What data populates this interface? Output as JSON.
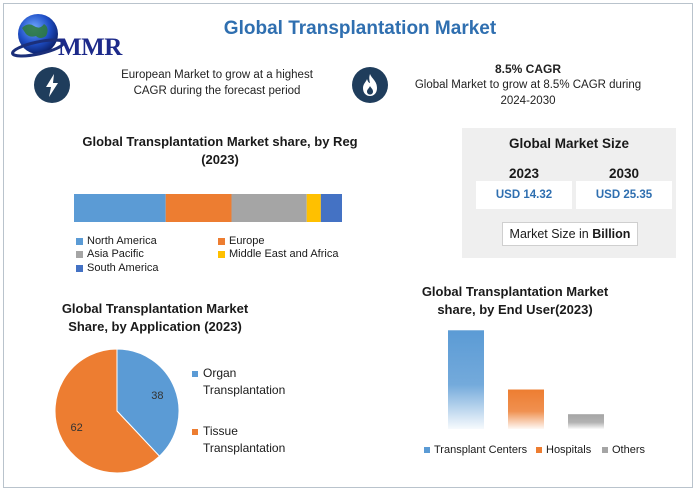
{
  "header": {
    "title": "Global Transplantation Market",
    "logo_text": "MMR"
  },
  "highlights": [
    {
      "icon": "lightning-icon",
      "headline": "",
      "text_line1": "European Market to grow at a highest",
      "text_line2": "CAGR during the forecast period"
    },
    {
      "icon": "flame-icon",
      "headline": "8.5% CAGR",
      "text_line1": "Global Market to grow at 8.5% CAGR during",
      "text_line2": "2024-2030"
    }
  ],
  "market_size": {
    "title": "Global Market Size",
    "year1": "2023",
    "year2": "2030",
    "value1": "USD 14.32",
    "value2": "USD 25.35",
    "unit_prefix": "Market Size in",
    "unit_bold": "Billion"
  },
  "colors": {
    "north_america": "#5b9bd5",
    "europe": "#ed7d31",
    "asia_pacific": "#a5a5a5",
    "middle_east_africa": "#ffc000",
    "south_america": "#4472c4"
  },
  "chart_data": [
    {
      "type": "bar",
      "stacked": true,
      "orientation": "horizontal",
      "title_line1": "Global Transplantation Market share, by Reg",
      "title_line2": "(2023)",
      "legend_placement": "bottom",
      "series": [
        {
          "name": "North America",
          "values": [
            39
          ]
        },
        {
          "name": "Europe",
          "values": [
            28
          ]
        },
        {
          "name": "Asia Pacific",
          "values": [
            32
          ]
        },
        {
          "name": "Middle East and Africa",
          "values": [
            6
          ]
        },
        {
          "name": "South America",
          "values": [
            9
          ]
        }
      ]
    },
    {
      "type": "pie",
      "title_line1": "Global Transplantation Market",
      "title_line2": "Share, by Application (2023)",
      "legend_placement": "right",
      "categories": [
        "Organ Transplantation",
        "Tissue Transplantation"
      ],
      "legend_labels": [
        [
          "Organ",
          "Transplantation"
        ],
        [
          "Tissue",
          "Transplantation"
        ]
      ],
      "values": [
        38,
        62
      ],
      "colors": [
        "#5b9bd5",
        "#ed7d31"
      ]
    },
    {
      "type": "bar",
      "title_line1": "Global Transplantation Market",
      "title_line2": "share, by End User(2023)",
      "legend_placement": "bottom",
      "categories": [
        "Transplant Centers",
        "Hospitals",
        "Others"
      ],
      "values": [
        60,
        24,
        9
      ],
      "colors": [
        "#5b9bd5",
        "#ed7d31",
        "#a5a5a5"
      ],
      "ylim": [
        0,
        62
      ]
    }
  ]
}
